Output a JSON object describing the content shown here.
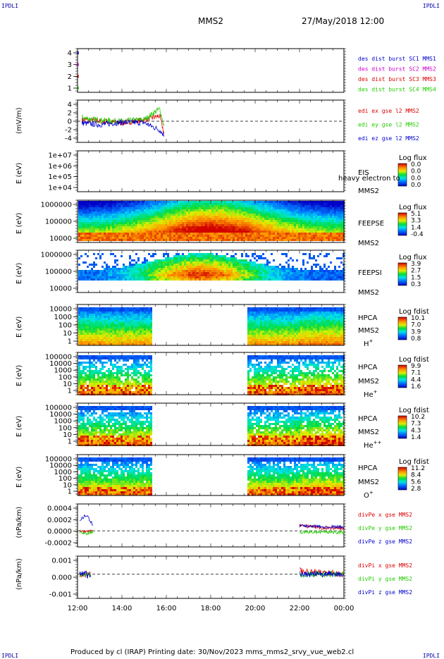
{
  "header": {
    "corner_tl": "IPDLI",
    "corner_tr": "IPDLI",
    "corner_bl": "IPDLI",
    "corner_br": "IPDLI",
    "spacecraft": "MMS2",
    "datetime": "27/May/2018 12:00"
  },
  "footer": {
    "text": "Produced by cl (IRAP)   Printing date: 30/Nov/2023   mms_mms2_srvy_vue_web2.cl"
  },
  "time_axis": {
    "ticks": [
      "12:00",
      "14:00",
      "16:00",
      "18:00",
      "20:00",
      "22:00",
      "00:00"
    ]
  },
  "colors": {
    "red": "#dd0000",
    "green": "#22cc00",
    "blue": "#0000cc",
    "magenta": "#cc00cc",
    "header_blue": "#0000aa"
  },
  "chart_data": [
    {
      "type": "line",
      "panel": "des-dist-burst",
      "ylabel": "",
      "ylim": [
        0.5,
        4.5
      ],
      "yticks": [
        "4",
        "3",
        "2",
        "1"
      ],
      "series": [
        {
          "name": "des dist burst SC1 MMS1",
          "color": "#0000cc",
          "values": [
            [
              12.0,
              4
            ]
          ]
        },
        {
          "name": "des dist burst SC2 MMS2",
          "color": "#cc00cc",
          "values": [
            [
              12.0,
              3
            ]
          ]
        },
        {
          "name": "des dist burst SC3 MMS3",
          "color": "#dd0000",
          "values": [
            [
              12.0,
              2
            ]
          ]
        },
        {
          "name": "des dist burst SC4 MMS4",
          "color": "#22cc00",
          "values": [
            [
              12.0,
              1
            ]
          ]
        }
      ]
    },
    {
      "type": "line",
      "panel": "edi-e-field",
      "ylabel": "(mV/m)",
      "ylim": [
        -6,
        6
      ],
      "yticks": [
        "4",
        "2",
        "0",
        "-2",
        "-4"
      ],
      "series": [
        {
          "name": "edi ex gse l2 MMS2",
          "color": "#dd0000",
          "values": [
            [
              12.2,
              0.5
            ],
            [
              13.0,
              0.0
            ],
            [
              14.0,
              -0.5
            ],
            [
              15.0,
              0.4
            ],
            [
              15.7,
              1.5
            ],
            [
              15.9,
              -3.5
            ]
          ]
        },
        {
          "name": "edi ey gse l2 MMS2",
          "color": "#22cc00",
          "values": [
            [
              12.2,
              1.0
            ],
            [
              13.0,
              0.3
            ],
            [
              14.0,
              0.0
            ],
            [
              15.0,
              0.5
            ],
            [
              15.7,
              3.5
            ],
            [
              15.9,
              -1.5
            ]
          ]
        },
        {
          "name": "edi ez gse l2 MMS2",
          "color": "#0000cc",
          "values": [
            [
              12.2,
              -0.5
            ],
            [
              13.0,
              -1.0
            ],
            [
              14.0,
              -0.3
            ],
            [
              15.0,
              -0.4
            ],
            [
              15.7,
              -2.5
            ],
            [
              15.9,
              -4.0
            ]
          ]
        }
      ]
    },
    {
      "type": "heatmap",
      "panel": "EIS",
      "ylabel": "E (eV)",
      "yticks": [
        "1e+07",
        "1e+06",
        "1e+05",
        "1e+04"
      ],
      "right_labels": [
        "EIS",
        "heavy electron to",
        "MMS2"
      ],
      "colorbar_title": "Log flux",
      "colorbar_ticks": [
        "0.0",
        "0.0",
        "0.0",
        "0.0"
      ]
    },
    {
      "type": "heatmap",
      "panel": "FEEPS-electrons",
      "ylabel": "E (eV)",
      "yticks": [
        "1000000",
        "100000",
        "10000"
      ],
      "right_labels": [
        "FEEPSE",
        "MMS2"
      ],
      "colorbar_title": "Log flux",
      "colorbar_ticks": [
        "5.1",
        "3.3",
        "1.4",
        "-0.4"
      ]
    },
    {
      "type": "heatmap",
      "panel": "FEEPS-ions",
      "ylabel": "E (eV)",
      "yticks": [
        "1000000",
        "100000",
        "10000"
      ],
      "right_labels": [
        "FEEPSI",
        "MMS2"
      ],
      "colorbar_title": "Log flux",
      "colorbar_ticks": [
        "3.9",
        "2.7",
        "1.5",
        "0.3"
      ]
    },
    {
      "type": "heatmap",
      "panel": "HPCA-H+",
      "ylabel": "E (eV)",
      "yticks": [
        "10000",
        "1000",
        "100",
        "10",
        "1"
      ],
      "right_labels": [
        "HPCA",
        "MMS2",
        "H+"
      ],
      "colorbar_title": "Log fdist",
      "colorbar_ticks": [
        "10.1",
        "7.0",
        "3.9",
        "0.8"
      ]
    },
    {
      "type": "heatmap",
      "panel": "HPCA-He+",
      "ylabel": "E (eV)",
      "yticks": [
        "100000",
        "10000",
        "1000",
        "100",
        "10",
        "1"
      ],
      "right_labels": [
        "HPCA",
        "MMS2",
        "He+"
      ],
      "colorbar_title": "Log fdist",
      "colorbar_ticks": [
        "9.9",
        "7.1",
        "4.4",
        "1.6"
      ]
    },
    {
      "type": "heatmap",
      "panel": "HPCA-He++",
      "ylabel": "E (eV)",
      "yticks": [
        "100000",
        "10000",
        "1000",
        "100",
        "10",
        "1"
      ],
      "right_labels": [
        "HPCA",
        "MMS2",
        "He++"
      ],
      "colorbar_title": "Log fdist",
      "colorbar_ticks": [
        "10.2",
        "7.3",
        "4.3",
        "1.4"
      ]
    },
    {
      "type": "heatmap",
      "panel": "HPCA-O+",
      "ylabel": "E (eV)",
      "yticks": [
        "100000",
        "10000",
        "1000",
        "100",
        "10",
        "1"
      ],
      "right_labels": [
        "HPCA",
        "MMS2",
        "O+"
      ],
      "colorbar_title": "Log fdist",
      "colorbar_ticks": [
        "11.2",
        "8.4",
        "5.6",
        "2.8"
      ]
    },
    {
      "type": "line",
      "panel": "divPe",
      "ylabel": "(nPa/km)",
      "ylim": [
        -0.0003,
        0.0005
      ],
      "yticks": [
        "0.0004",
        "0.0002",
        "0.0000",
        "-0.0002"
      ],
      "series": [
        {
          "name": "divPe x gse MMS2",
          "color": "#dd0000",
          "values": [
            [
              12.1,
              0.0
            ],
            [
              12.4,
              -2e-05
            ],
            [
              12.7,
              0.0
            ],
            [
              22.0,
              0.0001
            ],
            [
              23.0,
              5e-05
            ],
            [
              24.0,
              5e-05
            ]
          ]
        },
        {
          "name": "divPe y gse MMS2",
          "color": "#22cc00",
          "values": [
            [
              12.1,
              -3e-05
            ],
            [
              12.4,
              -5e-05
            ],
            [
              12.7,
              -2e-05
            ],
            [
              22.0,
              -3e-05
            ],
            [
              23.0,
              -2e-05
            ],
            [
              24.0,
              -3e-05
            ]
          ]
        },
        {
          "name": "divPe z gse MMS2",
          "color": "#0000cc",
          "values": [
            [
              12.1,
              0.0002
            ],
            [
              12.4,
              0.0003
            ],
            [
              12.7,
              0.0001
            ],
            [
              22.0,
              0.0001
            ],
            [
              23.0,
              8e-05
            ],
            [
              24.0,
              7e-05
            ]
          ]
        }
      ]
    },
    {
      "type": "line",
      "panel": "divPi",
      "ylabel": "(nPa/km)",
      "ylim": [
        -0.002,
        0.0015
      ],
      "yticks": [
        "0.001",
        "0.000",
        "-0.001"
      ],
      "series": [
        {
          "name": "divPi x gse MMS2",
          "color": "#dd0000",
          "values": [
            [
              12.1,
              0.0
            ],
            [
              12.6,
              0.0
            ],
            [
              22.0,
              0.0003
            ],
            [
              24.0,
              0.0
            ]
          ]
        },
        {
          "name": "divPi y gse MMS2",
          "color": "#22cc00",
          "values": [
            [
              12.1,
              0.0
            ],
            [
              12.6,
              0.0
            ],
            [
              22.0,
              0.0
            ],
            [
              24.0,
              0.0
            ]
          ]
        },
        {
          "name": "divPi z gse MMS2",
          "color": "#0000cc",
          "values": [
            [
              12.1,
              0.0002
            ],
            [
              12.6,
              -0.0002
            ],
            [
              22.0,
              0.0
            ],
            [
              24.0,
              0.0
            ]
          ]
        }
      ]
    }
  ]
}
